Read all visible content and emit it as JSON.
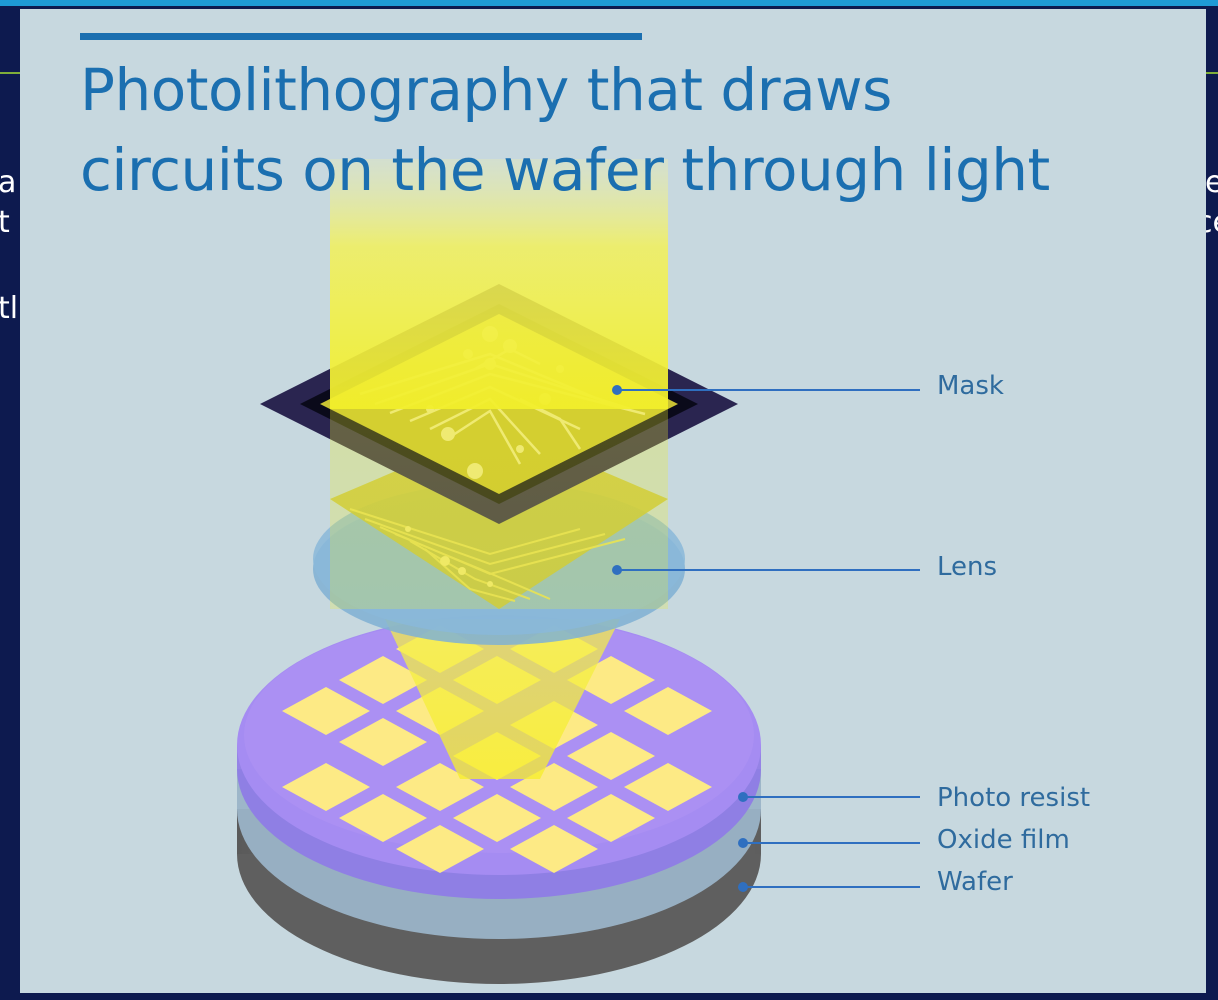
{
  "title": {
    "line1": "Photolithography that draws",
    "line2": "circuits on the wafer through light"
  },
  "labels": {
    "mask": "Mask",
    "lens": "Lens",
    "photo_resist": "Photo resist",
    "oxide_film": "Oxide film",
    "wafer": "Wafer"
  },
  "background_text": {
    "left": [
      "a",
      "t",
      "tl"
    ],
    "right": [
      "e",
      "ce"
    ]
  },
  "colors": {
    "title": "#1b6fb0",
    "slide_background": "#c7d8df",
    "frame": "#0d1a4f",
    "light_beam": "#f4f200",
    "mask_dark": "#2a2550",
    "lens": "#8ab8d9",
    "photo_resist": "#9a86ee",
    "oxide_film": "#9db6c9",
    "wafer": "#6b6b6b",
    "die": "#fdea85",
    "leader_line": "#2f6fc0"
  }
}
